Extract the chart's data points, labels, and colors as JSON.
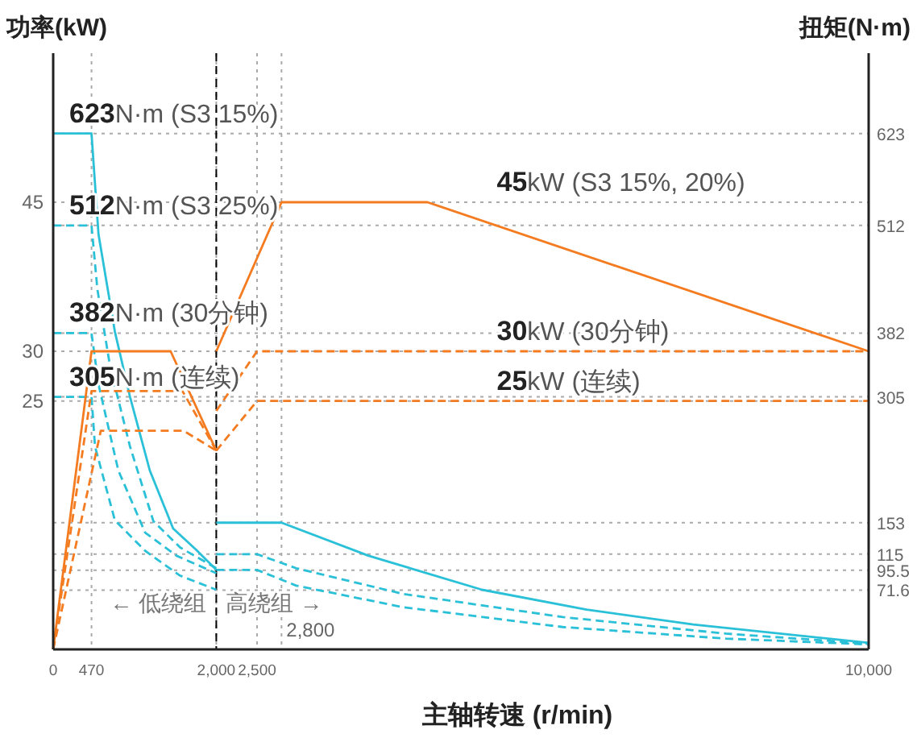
{
  "chart_data": {
    "type": "line",
    "xlabel": "主轴转速 (r/min)",
    "ylabel": "功率(kW)",
    "y2label": "扭矩(N·m)",
    "xlim": [
      0,
      10000
    ],
    "xticks": [
      0,
      470,
      {
        "value": 2000,
        "label": "2,000"
      },
      {
        "value": 2500,
        "label": "2,500"
      },
      {
        "value": 10000,
        "label": "10,000"
      }
    ],
    "ylim": [
      0,
      60
    ],
    "yticks": [
      25,
      30,
      45
    ],
    "y2lim": [
      0,
      720
    ],
    "y2ticks": [
      71.6,
      95.5,
      115,
      153,
      305,
      382,
      512,
      623
    ],
    "grid": true,
    "series": [
      {
        "color": "#29c0d8",
        "axis": "y2",
        "line_style": "solid",
        "x": [
          0,
          470,
          556,
          756,
          942,
          1185,
          1471,
          1757,
          2000
        ],
        "values": [
          623,
          623,
          501,
          384,
          305,
          216,
          146,
          120,
          96
        ]
      },
      {
        "color": "#29c0d8",
        "axis": "y2",
        "line_style": "dashed",
        "x": [
          0,
          470,
          542,
          699,
          942,
          1228,
          1557,
          2000
        ],
        "values": [
          512,
          512,
          435,
          341,
          245,
          155,
          123,
          98
        ]
      },
      {
        "color": "#29c0d8",
        "axis": "y2",
        "line_style": "dashed",
        "x": [
          0,
          470,
          556,
          799,
          1128,
          1514,
          2000
        ],
        "values": [
          382,
          382,
          320,
          216,
          141,
          113,
          92
        ]
      },
      {
        "color": "#29c0d8",
        "axis": "y2",
        "line_style": "dashed",
        "x": [
          0,
          470,
          513,
          756,
          1128,
          1557,
          2000
        ],
        "values": [
          305,
          305,
          245,
          156,
          119,
          89,
          72
        ]
      },
      {
        "color": "#29c0d8",
        "axis": "y2",
        "line_style": "solid",
        "x": [
          2000,
          2800,
          3870,
          5260,
          6540,
          7850,
          10000
        ],
        "values": [
          153,
          153,
          113,
          72,
          48,
          30,
          8
        ]
      },
      {
        "color": "#29c0d8",
        "axis": "y2",
        "line_style": "dashed",
        "x": [
          2000,
          2500,
          2980,
          4290,
          6250,
          8250,
          10000
        ],
        "values": [
          115,
          115,
          98,
          67,
          39,
          19,
          7
        ]
      },
      {
        "color": "#29c0d8",
        "axis": "y2",
        "line_style": "dashed",
        "x": [
          2000,
          2500,
          2980,
          4290,
          6250,
          8250,
          10000
        ],
        "values": [
          96,
          96,
          77,
          51,
          27,
          13,
          6
        ]
      },
      {
        "color": "#f47b20",
        "line_style": "solid",
        "x": [
          0,
          470,
          1440,
          2000
        ],
        "values": [
          0,
          30,
          30,
          20
        ]
      },
      {
        "color": "#f47b20",
        "line_style": "dashed",
        "x": [
          0,
          470,
          1585,
          2000
        ],
        "values": [
          0,
          26,
          26,
          20
        ]
      },
      {
        "color": "#f47b20",
        "line_style": "dashed",
        "x": [
          0,
          584,
          1600,
          2000
        ],
        "values": [
          0,
          22,
          22,
          20
        ]
      },
      {
        "color": "#f47b20",
        "line_style": "solid",
        "x": [
          2000,
          2800,
          4590,
          10000
        ],
        "values": [
          30,
          45,
          45,
          30
        ]
      },
      {
        "color": "#f47b20",
        "line_style": "dashed",
        "x": [
          2000,
          2500,
          10000
        ],
        "values": [
          24,
          30,
          30
        ]
      },
      {
        "color": "#f47b20",
        "line_style": "dashed",
        "x": [
          2000,
          2500,
          10000
        ],
        "values": [
          20,
          25,
          25
        ]
      }
    ],
    "ref_lines": [
      {
        "axis": "x",
        "value": 2000,
        "color": "#000000",
        "line_style": "dashed"
      },
      {
        "axis": "x",
        "value": 2800,
        "label": "2,800",
        "color": "#aaaaaa",
        "line_style": "dotted"
      }
    ],
    "annotations": [
      "623N·m (S3 15%)",
      "512N·m (S3 25%)",
      "382N·m (30分钟)",
      "305N·m (连续)",
      "45kW (S3 15%, 20%)",
      "30kW (30分钟)",
      "25kW (连续)",
      "← 低绕组",
      "高绕组 →"
    ]
  }
}
